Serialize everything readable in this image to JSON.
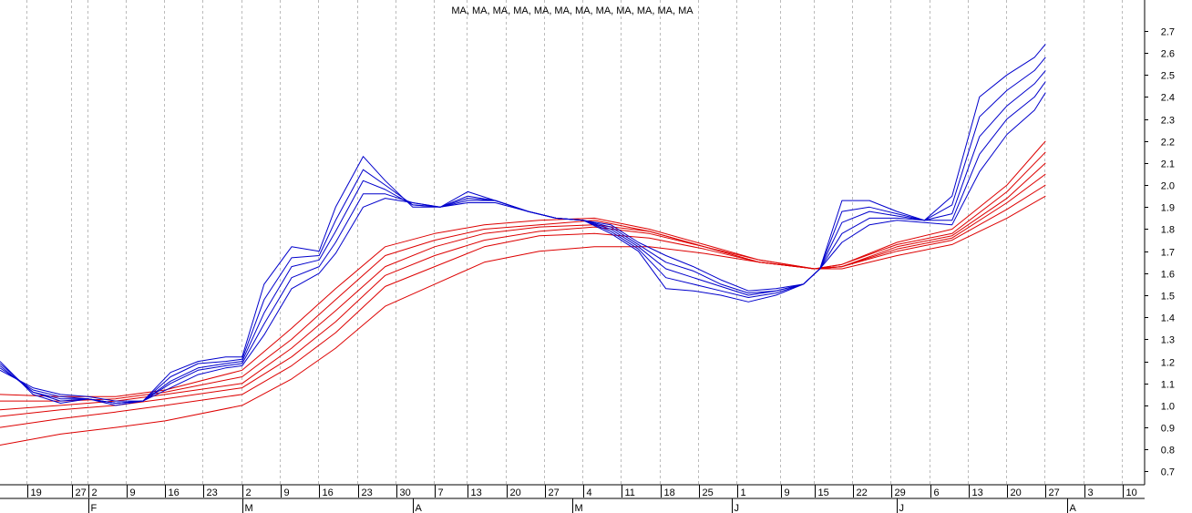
{
  "chart_data": {
    "type": "line",
    "title": "MA, MA, MA, MA, MA, MA, MA, MA, MA, MA, MA, MA",
    "xlabel": "",
    "ylabel": "",
    "ylim": [
      0.64,
      2.84
    ],
    "y_ticks": [
      "0.7",
      "0.8",
      "0.9",
      "1.0",
      "1.1",
      "1.2",
      "1.3",
      "1.4",
      "1.5",
      "1.6",
      "1.7",
      "1.8",
      "1.9",
      "2.0",
      "2.1",
      "2.2",
      "2.3",
      "2.4",
      "2.5",
      "2.6",
      "2.7"
    ],
    "x_ticks": [
      {
        "label": "19",
        "x": 5
      },
      {
        "label": "27",
        "x": 13
      },
      {
        "label": "2",
        "x": 16
      },
      {
        "label": "9",
        "x": 23
      },
      {
        "label": "16",
        "x": 30
      },
      {
        "label": "23",
        "x": 37
      },
      {
        "label": "2",
        "x": 44
      },
      {
        "label": "9",
        "x": 51
      },
      {
        "label": "16",
        "x": 58
      },
      {
        "label": "23",
        "x": 65
      },
      {
        "label": "30",
        "x": 72
      },
      {
        "label": "7",
        "x": 79
      },
      {
        "label": "13",
        "x": 85
      },
      {
        "label": "20",
        "x": 92
      },
      {
        "label": "27",
        "x": 99
      },
      {
        "label": "4",
        "x": 106
      },
      {
        "label": "11",
        "x": 113
      },
      {
        "label": "18",
        "x": 120
      },
      {
        "label": "25",
        "x": 127
      },
      {
        "label": "1",
        "x": 134
      },
      {
        "label": "9",
        "x": 142
      },
      {
        "label": "15",
        "x": 148
      },
      {
        "label": "22",
        "x": 155
      },
      {
        "label": "29",
        "x": 162
      },
      {
        "label": "6",
        "x": 169
      },
      {
        "label": "13",
        "x": 176
      },
      {
        "label": "20",
        "x": 183
      },
      {
        "label": "27",
        "x": 190
      },
      {
        "label": "3",
        "x": 197
      },
      {
        "label": "10",
        "x": 204
      }
    ],
    "month_ticks": [
      {
        "label": "F",
        "x": 16
      },
      {
        "label": "M",
        "x": 44
      },
      {
        "label": "A",
        "x": 75
      },
      {
        "label": "M",
        "x": 104
      },
      {
        "label": "J",
        "x": 133
      },
      {
        "label": "J",
        "x": 163
      },
      {
        "label": "A",
        "x": 194
      }
    ],
    "x_range": [
      0,
      208
    ],
    "grid": true,
    "short_color": "#0000cc",
    "long_color": "#dd0000",
    "series": [
      {
        "group": "short",
        "x": [
          0,
          6,
          11,
          16,
          21,
          26,
          31,
          36,
          41,
          44,
          48,
          53,
          58,
          61,
          66,
          70,
          75,
          80,
          85,
          90,
          96,
          101,
          106,
          111,
          116,
          121,
          126,
          131,
          136,
          141,
          146,
          149,
          153,
          158,
          163,
          168,
          173,
          178,
          183,
          188,
          190
        ],
        "y": [
          1.2,
          1.05,
          1.01,
          1.03,
          1.0,
          1.02,
          1.15,
          1.2,
          1.22,
          1.22,
          1.55,
          1.72,
          1.7,
          1.9,
          2.13,
          2.02,
          1.9,
          1.9,
          1.97,
          1.93,
          1.88,
          1.85,
          1.84,
          1.78,
          1.7,
          1.53,
          1.52,
          1.5,
          1.47,
          1.5,
          1.55,
          1.62,
          1.93,
          1.93,
          1.88,
          1.84,
          1.95,
          2.4,
          2.5,
          2.58,
          2.64
        ]
      },
      {
        "group": "short",
        "x": [
          0,
          6,
          11,
          16,
          21,
          26,
          31,
          36,
          41,
          44,
          48,
          53,
          58,
          61,
          66,
          70,
          75,
          80,
          85,
          90,
          96,
          101,
          106,
          111,
          116,
          121,
          126,
          131,
          136,
          141,
          146,
          149,
          153,
          158,
          163,
          168,
          173,
          178,
          183,
          188,
          190
        ],
        "y": [
          1.19,
          1.06,
          1.02,
          1.03,
          1.01,
          1.02,
          1.13,
          1.19,
          1.2,
          1.21,
          1.48,
          1.67,
          1.68,
          1.84,
          2.07,
          2.0,
          1.91,
          1.9,
          1.95,
          1.93,
          1.88,
          1.85,
          1.84,
          1.79,
          1.71,
          1.58,
          1.55,
          1.52,
          1.49,
          1.51,
          1.55,
          1.62,
          1.88,
          1.9,
          1.87,
          1.84,
          1.91,
          2.31,
          2.43,
          2.52,
          2.58
        ]
      },
      {
        "group": "short",
        "x": [
          0,
          6,
          11,
          16,
          21,
          26,
          31,
          36,
          41,
          44,
          48,
          53,
          58,
          61,
          66,
          70,
          75,
          80,
          85,
          90,
          96,
          101,
          106,
          111,
          116,
          121,
          126,
          131,
          136,
          141,
          146,
          149,
          153,
          158,
          163,
          168,
          173,
          178,
          183,
          188,
          190
        ],
        "y": [
          1.18,
          1.06,
          1.03,
          1.03,
          1.01,
          1.02,
          1.11,
          1.17,
          1.19,
          1.2,
          1.42,
          1.63,
          1.66,
          1.79,
          2.02,
          1.98,
          1.91,
          1.9,
          1.94,
          1.93,
          1.88,
          1.85,
          1.84,
          1.8,
          1.72,
          1.62,
          1.58,
          1.54,
          1.5,
          1.52,
          1.55,
          1.62,
          1.83,
          1.88,
          1.86,
          1.84,
          1.87,
          2.22,
          2.36,
          2.46,
          2.52
        ]
      },
      {
        "group": "short",
        "x": [
          0,
          6,
          11,
          16,
          21,
          26,
          31,
          36,
          41,
          44,
          48,
          53,
          58,
          61,
          66,
          70,
          75,
          80,
          85,
          90,
          96,
          101,
          106,
          111,
          116,
          121,
          126,
          131,
          136,
          141,
          146,
          149,
          153,
          158,
          163,
          168,
          173,
          178,
          183,
          188,
          190
        ],
        "y": [
          1.17,
          1.07,
          1.04,
          1.03,
          1.01,
          1.02,
          1.1,
          1.16,
          1.18,
          1.19,
          1.37,
          1.58,
          1.63,
          1.74,
          1.96,
          1.96,
          1.92,
          1.9,
          1.93,
          1.93,
          1.88,
          1.85,
          1.84,
          1.81,
          1.73,
          1.65,
          1.61,
          1.55,
          1.51,
          1.52,
          1.55,
          1.62,
          1.78,
          1.85,
          1.85,
          1.84,
          1.84,
          2.14,
          2.3,
          2.4,
          2.47
        ]
      },
      {
        "group": "short",
        "x": [
          0,
          6,
          11,
          16,
          21,
          26,
          31,
          36,
          41,
          44,
          48,
          53,
          58,
          61,
          66,
          70,
          75,
          80,
          85,
          90,
          96,
          101,
          106,
          111,
          116,
          121,
          126,
          131,
          136,
          141,
          146,
          149,
          153,
          158,
          163,
          168,
          173,
          178,
          183,
          188,
          190
        ],
        "y": [
          1.16,
          1.08,
          1.05,
          1.04,
          1.02,
          1.02,
          1.08,
          1.14,
          1.17,
          1.18,
          1.32,
          1.53,
          1.6,
          1.69,
          1.9,
          1.94,
          1.92,
          1.9,
          1.92,
          1.92,
          1.88,
          1.85,
          1.84,
          1.82,
          1.74,
          1.68,
          1.63,
          1.57,
          1.52,
          1.53,
          1.55,
          1.62,
          1.74,
          1.82,
          1.84,
          1.83,
          1.82,
          2.06,
          2.23,
          2.34,
          2.42
        ]
      },
      {
        "group": "long",
        "x": [
          0,
          11,
          21,
          30,
          44,
          53,
          61,
          70,
          79,
          88,
          98,
          108,
          118,
          128,
          138,
          148,
          153,
          163,
          173,
          183,
          190
        ],
        "y": [
          1.05,
          1.04,
          1.04,
          1.07,
          1.16,
          1.35,
          1.53,
          1.72,
          1.78,
          1.82,
          1.84,
          1.85,
          1.8,
          1.73,
          1.66,
          1.62,
          1.64,
          1.74,
          1.8,
          2.0,
          2.2
        ]
      },
      {
        "group": "long",
        "x": [
          0,
          11,
          21,
          30,
          44,
          53,
          61,
          70,
          79,
          88,
          98,
          108,
          118,
          128,
          138,
          148,
          153,
          163,
          173,
          183,
          190
        ],
        "y": [
          1.02,
          1.02,
          1.03,
          1.06,
          1.13,
          1.3,
          1.48,
          1.68,
          1.75,
          1.8,
          1.82,
          1.84,
          1.79,
          1.72,
          1.66,
          1.62,
          1.64,
          1.73,
          1.78,
          1.97,
          2.15
        ]
      },
      {
        "group": "long",
        "x": [
          0,
          11,
          21,
          30,
          44,
          53,
          61,
          70,
          79,
          88,
          98,
          108,
          118,
          128,
          138,
          148,
          153,
          163,
          173,
          183,
          190
        ],
        "y": [
          0.98,
          1.0,
          1.02,
          1.05,
          1.1,
          1.26,
          1.43,
          1.63,
          1.72,
          1.78,
          1.81,
          1.82,
          1.79,
          1.72,
          1.65,
          1.62,
          1.63,
          1.72,
          1.77,
          1.94,
          2.1
        ]
      },
      {
        "group": "long",
        "x": [
          0,
          11,
          21,
          30,
          44,
          53,
          61,
          70,
          79,
          88,
          98,
          108,
          118,
          128,
          138,
          148,
          153,
          163,
          173,
          183,
          190
        ],
        "y": [
          0.95,
          0.98,
          1.0,
          1.03,
          1.08,
          1.22,
          1.38,
          1.59,
          1.68,
          1.75,
          1.79,
          1.81,
          1.78,
          1.72,
          1.65,
          1.62,
          1.63,
          1.71,
          1.76,
          1.92,
          2.05
        ]
      },
      {
        "group": "long",
        "x": [
          0,
          11,
          21,
          30,
          44,
          53,
          61,
          70,
          79,
          88,
          98,
          108,
          118,
          128,
          138,
          148,
          153,
          163,
          173,
          183,
          190
        ],
        "y": [
          0.9,
          0.94,
          0.97,
          1.0,
          1.05,
          1.18,
          1.33,
          1.54,
          1.63,
          1.72,
          1.77,
          1.78,
          1.76,
          1.71,
          1.65,
          1.62,
          1.63,
          1.7,
          1.75,
          1.89,
          2.0
        ]
      },
      {
        "group": "long",
        "x": [
          0,
          11,
          21,
          30,
          44,
          53,
          61,
          70,
          79,
          88,
          98,
          108,
          118,
          128,
          138,
          148,
          153,
          163,
          173,
          183,
          190
        ],
        "y": [
          0.82,
          0.87,
          0.9,
          0.93,
          1.0,
          1.12,
          1.26,
          1.45,
          1.55,
          1.65,
          1.7,
          1.72,
          1.72,
          1.69,
          1.65,
          1.62,
          1.62,
          1.68,
          1.73,
          1.85,
          1.95
        ]
      }
    ]
  }
}
